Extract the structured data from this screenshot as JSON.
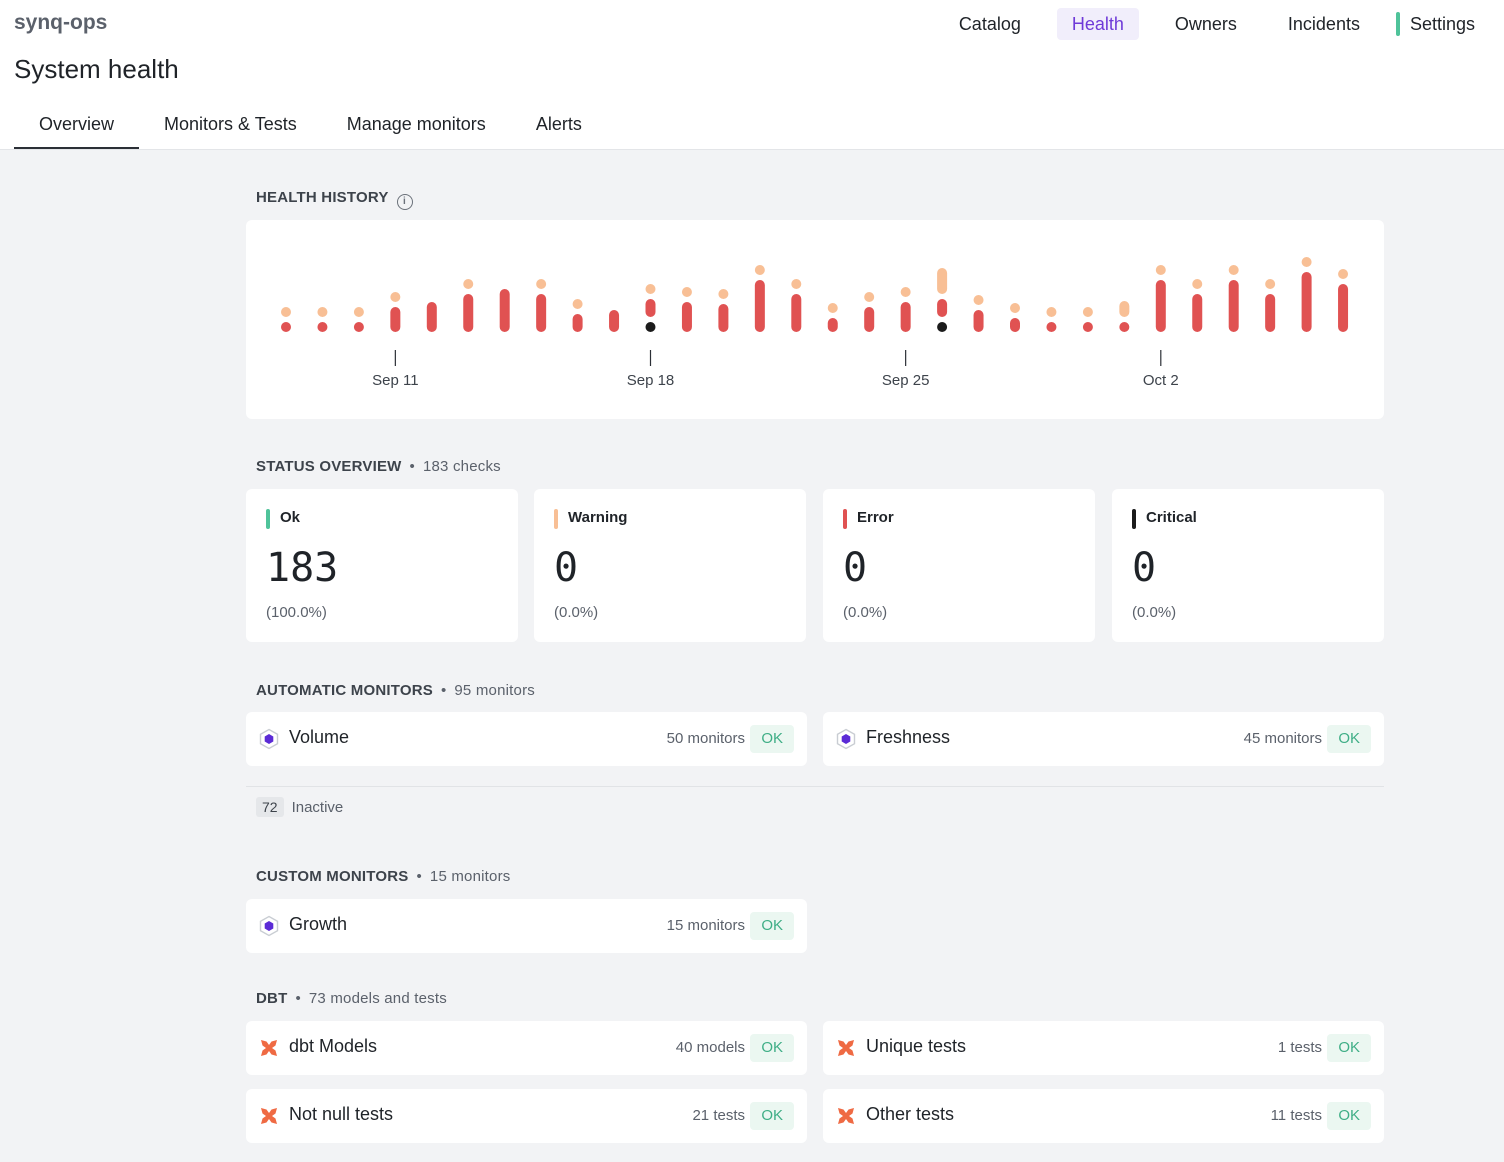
{
  "header": {
    "org": "synq-ops",
    "page_title": "System health",
    "nav": [
      {
        "label": "Catalog"
      },
      {
        "label": "Health"
      },
      {
        "label": "Owners"
      },
      {
        "label": "Incidents"
      },
      {
        "label": "Settings"
      }
    ],
    "nav_active": "Health",
    "settings_bar_color": "#4fc39a",
    "accent_color": "#6f3ad8"
  },
  "tabs": [
    {
      "label": "Overview"
    },
    {
      "label": "Monitors & Tests"
    },
    {
      "label": "Manage monitors"
    },
    {
      "label": "Alerts"
    }
  ],
  "tabs_active": "Overview",
  "health_history": {
    "title": "HEALTH HISTORY",
    "info_icon": "info-icon",
    "date_labels": [
      {
        "label": "Sep 11",
        "day_index": 3
      },
      {
        "label": "Sep 18",
        "day_index": 10
      },
      {
        "label": "Sep 25",
        "day_index": 17
      },
      {
        "label": "Oct 2",
        "day_index": 24
      }
    ],
    "colors": {
      "error": "#e05252",
      "warning": "#f8bf95",
      "critical": "#1b1b1b"
    },
    "days": [
      {
        "warning": 0.05,
        "error": 0.05,
        "critical": 0
      },
      {
        "warning": 0.05,
        "error": 0.05,
        "critical": 0
      },
      {
        "warning": 0.05,
        "error": 0.05,
        "critical": 0
      },
      {
        "warning": 0.05,
        "error": 0.25,
        "critical": 0
      },
      {
        "warning": 0,
        "error": 0.3,
        "critical": 0
      },
      {
        "warning": 0.05,
        "error": 0.38,
        "critical": 0
      },
      {
        "warning": 0,
        "error": 0.43,
        "critical": 0
      },
      {
        "warning": 0.05,
        "error": 0.38,
        "critical": 0
      },
      {
        "warning": 0.05,
        "error": 0.18,
        "critical": 0
      },
      {
        "warning": 0,
        "error": 0.22,
        "critical": 0
      },
      {
        "warning": 0.05,
        "error": 0.18,
        "critical": 0.05
      },
      {
        "warning": 0.05,
        "error": 0.3,
        "critical": 0
      },
      {
        "warning": 0.05,
        "error": 0.28,
        "critical": 0
      },
      {
        "warning": 0.08,
        "error": 0.52,
        "critical": 0
      },
      {
        "warning": 0.05,
        "error": 0.38,
        "critical": 0
      },
      {
        "warning": 0.05,
        "error": 0.14,
        "critical": 0
      },
      {
        "warning": 0.05,
        "error": 0.25,
        "critical": 0
      },
      {
        "warning": 0.05,
        "error": 0.3,
        "critical": 0
      },
      {
        "warning": 0.26,
        "error": 0.18,
        "critical": 0.05
      },
      {
        "warning": 0.05,
        "error": 0.22,
        "critical": 0
      },
      {
        "warning": 0.05,
        "error": 0.14,
        "critical": 0
      },
      {
        "warning": 0.05,
        "error": 0.05,
        "critical": 0
      },
      {
        "warning": 0.05,
        "error": 0.05,
        "critical": 0
      },
      {
        "warning": 0.16,
        "error": 0.1,
        "critical": 0
      },
      {
        "warning": 0.08,
        "error": 0.52,
        "critical": 0
      },
      {
        "warning": 0.05,
        "error": 0.38,
        "critical": 0
      },
      {
        "warning": 0.08,
        "error": 0.52,
        "critical": 0
      },
      {
        "warning": 0.05,
        "error": 0.38,
        "critical": 0
      },
      {
        "warning": 0.08,
        "error": 0.6,
        "critical": 0
      },
      {
        "warning": 0.05,
        "error": 0.48,
        "critical": 0
      }
    ]
  },
  "status_overview": {
    "title": "STATUS OVERVIEW",
    "subtitle": "183 checks",
    "cards": [
      {
        "label": "Ok",
        "value": "183",
        "pct": "(100.0%)",
        "color": "#4fc39a"
      },
      {
        "label": "Warning",
        "value": "0",
        "pct": "(0.0%)",
        "color": "#f8bf95"
      },
      {
        "label": "Error",
        "value": "0",
        "pct": "(0.0%)",
        "color": "#e05252"
      },
      {
        "label": "Critical",
        "value": "0",
        "pct": "(0.0%)",
        "color": "#1b1b1b"
      }
    ]
  },
  "automatic_monitors": {
    "title": "AUTOMATIC MONITORS",
    "subtitle": "95 monitors",
    "items": [
      {
        "name": "Volume",
        "count": "50 monitors",
        "status": "OK",
        "icon": "hexagon-icon"
      },
      {
        "name": "Freshness",
        "count": "45 monitors",
        "status": "OK",
        "icon": "hexagon-icon"
      }
    ],
    "inactive_count": "72",
    "inactive_label": "Inactive"
  },
  "custom_monitors": {
    "title": "CUSTOM MONITORS",
    "subtitle": "15 monitors",
    "items": [
      {
        "name": "Growth",
        "count": "15 monitors",
        "status": "OK",
        "icon": "hexagon-icon"
      }
    ]
  },
  "dbt": {
    "title": "DBT",
    "subtitle": "73 models and tests",
    "items": [
      {
        "name": "dbt Models",
        "count": "40 models",
        "status": "OK",
        "icon": "dbt-icon"
      },
      {
        "name": "Unique tests",
        "count": "1 tests",
        "status": "OK",
        "icon": "dbt-icon"
      },
      {
        "name": "Not null tests",
        "count": "21 tests",
        "status": "OK",
        "icon": "dbt-icon"
      },
      {
        "name": "Other tests",
        "count": "11 tests",
        "status": "OK",
        "icon": "dbt-icon"
      }
    ]
  },
  "status_ok_color": "#3fae86",
  "hexagon_color": "#5b2bd6",
  "dbt_color": "#ef6a43"
}
